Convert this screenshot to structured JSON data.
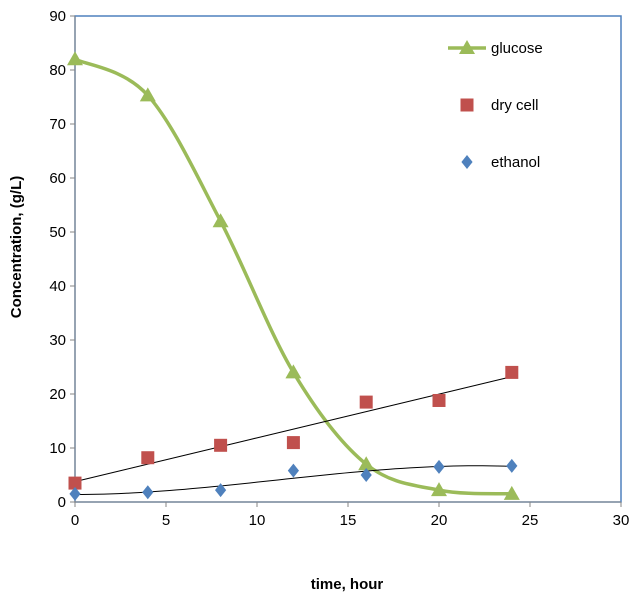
{
  "chart_data": {
    "type": "scatter",
    "title": "",
    "xlabel": "time, hour",
    "ylabel": "Concentration, (g/L)",
    "xlim": [
      0,
      30
    ],
    "ylim": [
      0,
      90
    ],
    "xticks": [
      0,
      5,
      10,
      15,
      20,
      25,
      30
    ],
    "yticks": [
      0,
      10,
      20,
      30,
      40,
      50,
      60,
      70,
      80,
      90
    ],
    "grid": false,
    "legend_position": "top-right",
    "series": [
      {
        "name": "glucose",
        "marker": "triangle",
        "color": "#9BBB59",
        "line": "smooth",
        "x": [
          0,
          4,
          8,
          12,
          16,
          20,
          24
        ],
        "y": [
          82,
          75.3,
          52,
          24,
          7,
          2.2,
          1.5
        ]
      },
      {
        "name": "dry cell",
        "marker": "square",
        "color": "#C0504D",
        "trendline": "linear",
        "trendline_color": "#000000",
        "x": [
          0,
          4,
          8,
          12,
          16,
          20,
          24
        ],
        "y": [
          3.5,
          8.2,
          10.5,
          11,
          18.5,
          18.8,
          24
        ]
      },
      {
        "name": "ethanol",
        "marker": "diamond",
        "color": "#4F81BD",
        "trendline": "polynomial",
        "trendline_color": "#000000",
        "x": [
          0,
          4,
          8,
          12,
          16,
          20,
          24
        ],
        "y": [
          1.5,
          1.8,
          2.2,
          5.8,
          5,
          6.5,
          6.7
        ]
      }
    ]
  }
}
